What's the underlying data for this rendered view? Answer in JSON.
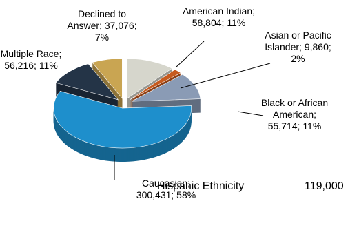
{
  "chart_data": {
    "type": "pie",
    "categories": [
      "American Indian",
      "Asian or Pacific Islander",
      "Black or African American",
      "Caucasian",
      "Multiple Race",
      "Declined to Answer"
    ],
    "values": [
      58804,
      9860,
      55714,
      300431,
      56216,
      37076
    ],
    "value_labels": [
      "58,804",
      "9,860",
      "55,714",
      "300,431",
      "56,216",
      "37,076"
    ],
    "shares": [
      11,
      2,
      11,
      58,
      11,
      7
    ],
    "share_labels": [
      "11%",
      "2%",
      "11%",
      "58%",
      "11%",
      "7%"
    ],
    "separator": ";",
    "colors": [
      "#d6d6cc",
      "#c65a1e",
      "#8a9bb5",
      "#1e8fcc",
      "#243447",
      "#c9a552"
    ],
    "note": {
      "label": "Hispanic Ethnicity",
      "value": 119000,
      "value_label": "119,000"
    }
  }
}
